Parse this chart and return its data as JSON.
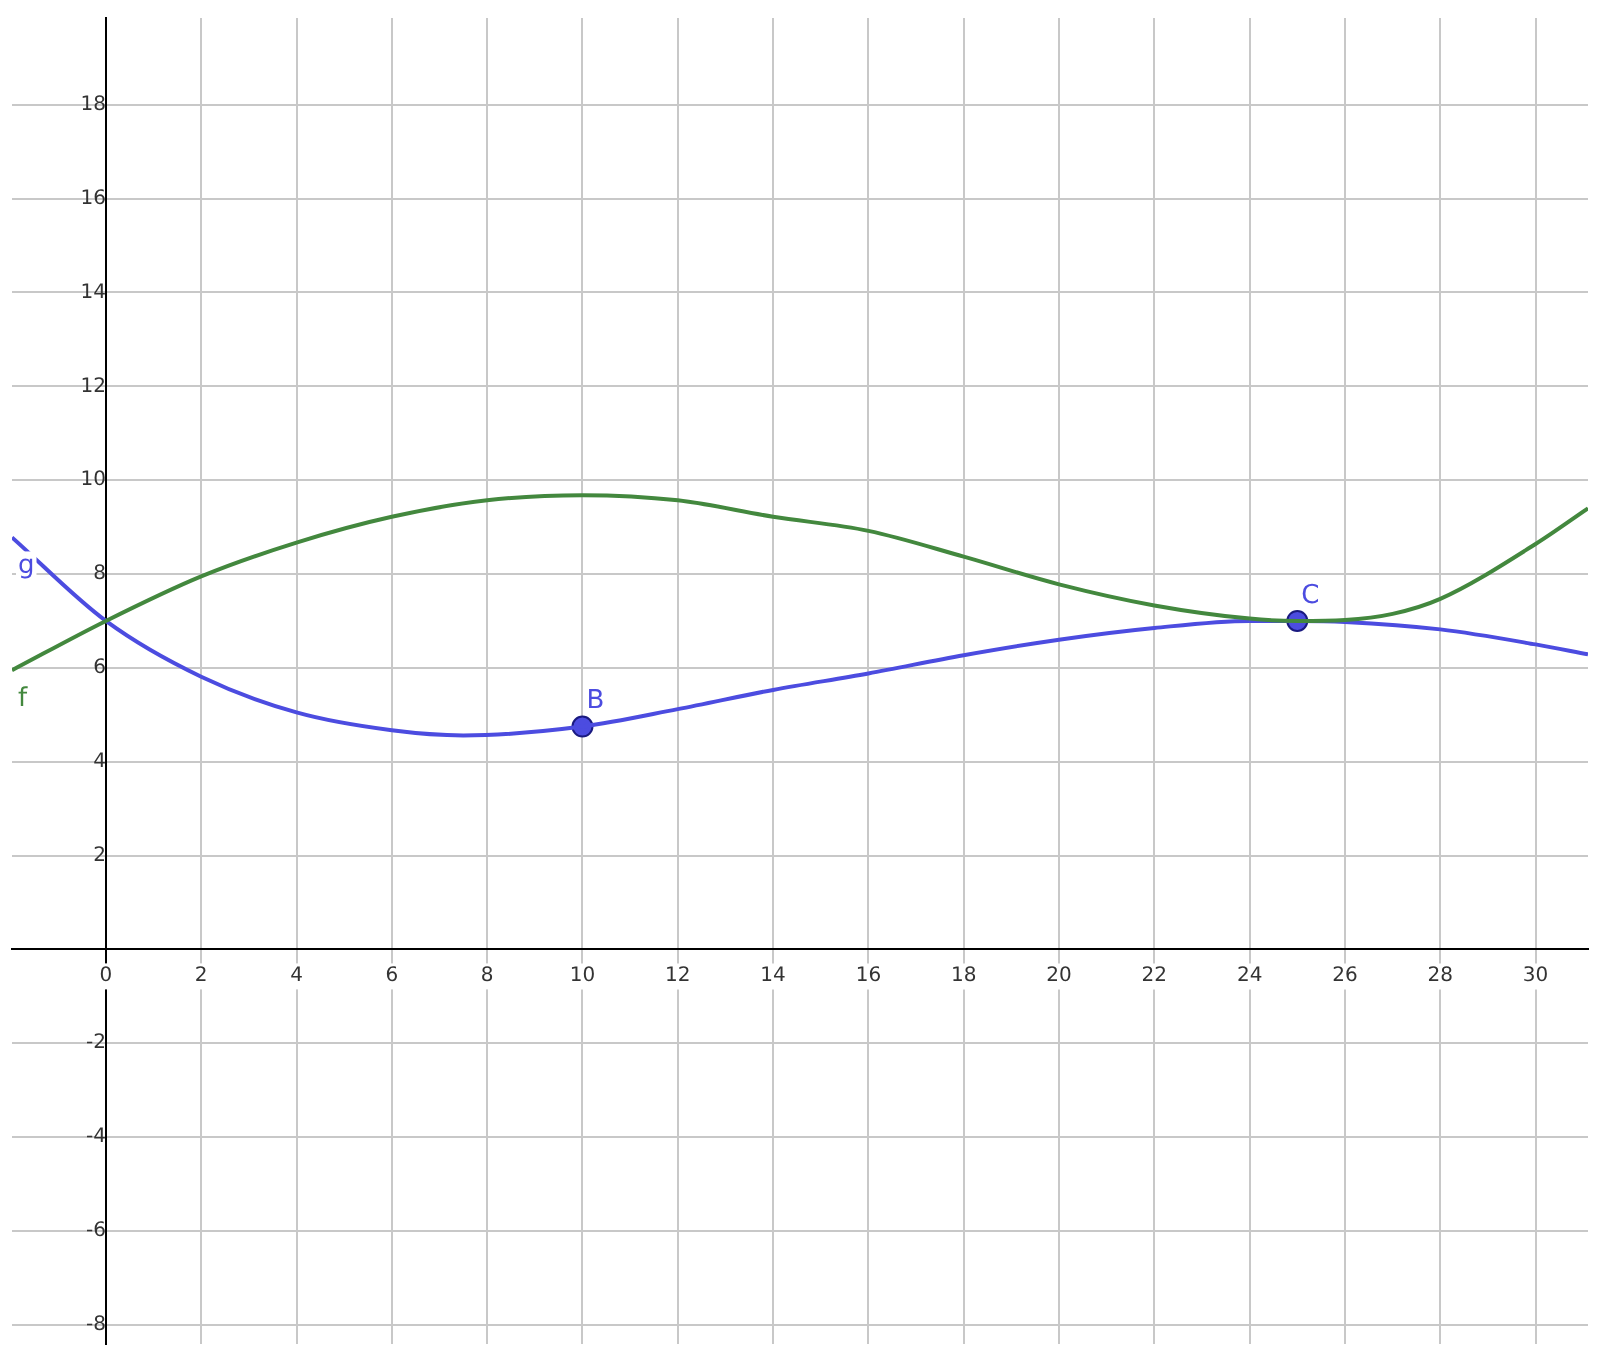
{
  "chart_data": {
    "type": "line",
    "xlim": [
      -1.97,
      31.1
    ],
    "ylim": [
      -8.41,
      19.85
    ],
    "xticks": [
      0,
      2,
      4,
      6,
      8,
      10,
      12,
      14,
      16,
      18,
      20,
      22,
      24,
      26,
      28,
      30
    ],
    "yticks": [
      -8,
      -6,
      -4,
      -2,
      {
        "value": 0,
        "label": null
      },
      2,
      4,
      6,
      8,
      10,
      12,
      14,
      16,
      18
    ],
    "grid": true,
    "legend": false,
    "marker": "none",
    "line_style": "solid",
    "series": [
      {
        "name": "f",
        "color": "#43883e",
        "x": [
          -1.97,
          0,
          2,
          4,
          6,
          8,
          10,
          12,
          14,
          16,
          18,
          20,
          22,
          24,
          25,
          26,
          27,
          28,
          30,
          31.1
        ],
        "values": [
          5.95,
          7,
          7.95,
          8.67,
          9.22,
          9.57,
          9.68,
          9.57,
          9.22,
          8.92,
          8.37,
          7.78,
          7.33,
          7.05,
          7,
          7.02,
          7.15,
          7.47,
          8.64,
          9.4
        ]
      },
      {
        "name": "g",
        "color": "#4c4ce0",
        "x": [
          -1.97,
          0,
          2,
          4,
          6,
          7.5,
          10,
          12,
          14,
          16,
          18,
          20,
          22,
          24,
          25,
          26,
          28,
          30,
          31.1
        ],
        "values": [
          8.78,
          7,
          5.81,
          5.05,
          4.67,
          4.56,
          4.75,
          5.12,
          5.53,
          5.88,
          6.27,
          6.6,
          6.85,
          7,
          7,
          6.98,
          6.82,
          6.5,
          6.29
        ]
      },
      {
        "type": "scatter",
        "marker": "circle",
        "color": "#4c4ce0",
        "x": [
          10,
          25
        ],
        "values": [
          4.75,
          7
        ]
      }
    ],
    "annotations": [
      {
        "text": "B",
        "x": 10,
        "y": 4.75
      },
      {
        "text": "C",
        "x": 25,
        "y": 7
      }
    ]
  }
}
